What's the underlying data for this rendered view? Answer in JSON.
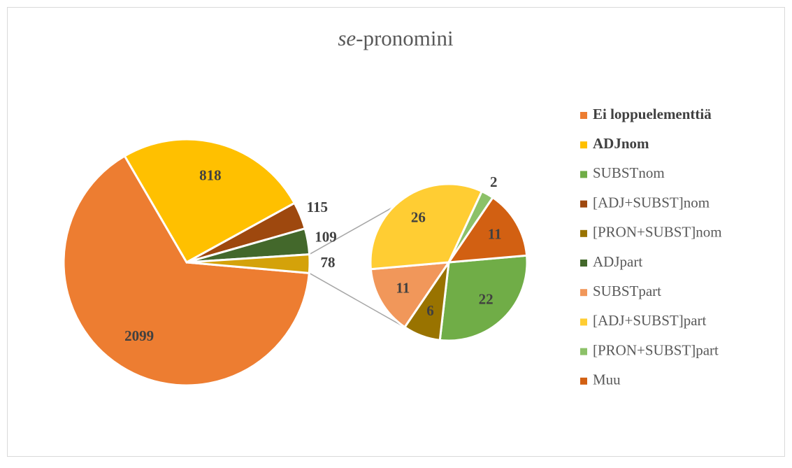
{
  "chart_data": {
    "type": "pie-of-pie",
    "title": [
      "se",
      "-pronomini"
    ],
    "series": [
      {
        "name": "Ei loppuelementtiä",
        "color": "#ED7D31",
        "value": 2099,
        "pie": "main",
        "bold": true
      },
      {
        "name": "ADJnom",
        "color": "#FFC000",
        "value": 818,
        "pie": "main",
        "bold": true
      },
      {
        "name": "SUBSTnom",
        "color": "#70AD47",
        "value": 22,
        "pie": "secondary",
        "bold": false
      },
      {
        "name": "[ADJ+SUBST]nom",
        "color": "#9E480E",
        "value": 115,
        "pie": "main",
        "bold": false
      },
      {
        "name": "[PRON+SUBST]nom",
        "color": "#997300",
        "value": 6,
        "pie": "secondary",
        "bold": false
      },
      {
        "name": "ADJpart",
        "color": "#43682B",
        "value": 109,
        "pie": "main",
        "bold": false
      },
      {
        "name": "SUBSTpart",
        "color": "#F1975A",
        "value": 11,
        "pie": "secondary",
        "bold": false
      },
      {
        "name": "[ADJ+SUBST]part",
        "color": "#FFCD33",
        "value": 26,
        "pie": "secondary",
        "bold": false
      },
      {
        "name": "[PRON+SUBST]part",
        "color": "#8CC168",
        "value": 2,
        "pie": "secondary",
        "bold": false
      },
      {
        "name": "Muu",
        "color": "#D26012",
        "value": 11,
        "pie": "secondary",
        "bold": false
      }
    ],
    "other_value": 78,
    "other_color": "#D4A20A",
    "legend": "right"
  }
}
